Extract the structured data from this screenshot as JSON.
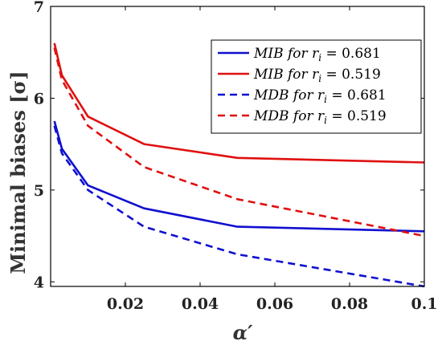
{
  "chart_data": {
    "type": "line",
    "title": "",
    "xlabel": "α′",
    "ylabel": "Minimal biases [σ]",
    "xlim": [
      0,
      0.1
    ],
    "ylim": [
      3.95,
      7
    ],
    "xticks": [
      {
        "value": 0.02,
        "label": "0.02"
      },
      {
        "value": 0.04,
        "label": "0.04"
      },
      {
        "value": 0.06,
        "label": "0.06"
      },
      {
        "value": 0.08,
        "label": "0.08"
      },
      {
        "value": 0.1,
        "label": "0.1"
      }
    ],
    "yticks": [
      {
        "value": 4,
        "label": "4"
      },
      {
        "value": 5,
        "label": "5"
      },
      {
        "value": 6,
        "label": "6"
      },
      {
        "value": 7,
        "label": "7"
      }
    ],
    "grid": false,
    "legend_position": "top-right",
    "series": [
      {
        "name": "MIB for r_i = 0.681",
        "legend_main": "MIB for r",
        "legend_sub": "i",
        "legend_value": " = 0.681",
        "color": "#1010d0",
        "dash": "solid",
        "x": [
          0.001,
          0.003,
          0.01,
          0.025,
          0.05,
          0.1
        ],
        "y": [
          5.75,
          5.45,
          5.05,
          4.8,
          4.6,
          4.55
        ]
      },
      {
        "name": "MIB for r_i = 0.519",
        "legend_main": "MIB for r",
        "legend_sub": "i",
        "legend_value": " = 0.519",
        "color": "#e01010",
        "dash": "solid",
        "x": [
          0.001,
          0.003,
          0.01,
          0.025,
          0.05,
          0.1
        ],
        "y": [
          6.6,
          6.25,
          5.8,
          5.5,
          5.35,
          5.3
        ]
      },
      {
        "name": "MDB for r_i = 0.681",
        "legend_main": "MDB for r",
        "legend_sub": "i",
        "legend_value": " = 0.681",
        "color": "#1010d0",
        "dash": "dashed",
        "x": [
          0.001,
          0.003,
          0.01,
          0.025,
          0.05,
          0.1
        ],
        "y": [
          5.7,
          5.4,
          5.0,
          4.6,
          4.3,
          3.95
        ]
      },
      {
        "name": "MDB for r_i = 0.519",
        "legend_main": "MDB for r",
        "legend_sub": "i",
        "legend_value": " = 0.519",
        "color": "#e01010",
        "dash": "dashed",
        "x": [
          0.001,
          0.003,
          0.01,
          0.025,
          0.05,
          0.1
        ],
        "y": [
          6.55,
          6.2,
          5.7,
          5.25,
          4.9,
          4.5
        ]
      }
    ]
  }
}
